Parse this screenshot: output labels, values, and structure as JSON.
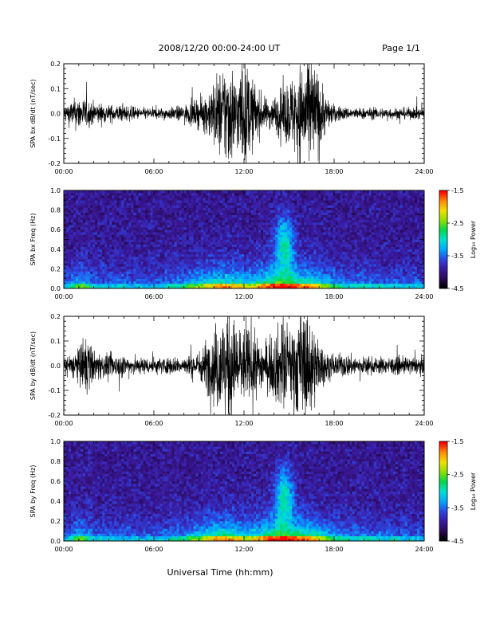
{
  "header": {
    "title": "2008/12/20  00:00-24:00 UT",
    "page": "Page 1/1"
  },
  "footer": {
    "xlabel": "Universal Time (hh:mm)"
  },
  "colors": {
    "trace": "#000000",
    "background": "#ffffff",
    "colormap": [
      "#000000",
      "#2a0a5a",
      "#3a1aa0",
      "#2b49e6",
      "#00a8ff",
      "#00e0d0",
      "#00d84a",
      "#8ee000",
      "#f0e000",
      "#ff8a00",
      "#ff0000"
    ]
  },
  "chart_data": [
    {
      "type": "line",
      "panel": "bx-timeseries",
      "ylabel": "SPA bx dB/dt (nT/sec)",
      "x_tick_labels": [
        "00:00",
        "06:00",
        "12:00",
        "18:00",
        "24:00"
      ],
      "xlim": [
        0,
        24
      ],
      "ylim": [
        -0.2,
        0.2
      ],
      "y_tick_labels": [
        "0.2",
        "0.1",
        "0.0",
        "-0.1",
        "-0.2"
      ],
      "y_ticks": [
        0.2,
        0.1,
        0.0,
        -0.1,
        -0.2
      ],
      "series": [
        {
          "x": [
            0,
            1,
            2,
            3,
            4,
            5,
            6,
            7,
            8,
            9,
            9.5,
            10,
            10.5,
            11,
            11.5,
            12,
            12.5,
            13,
            13.5,
            14,
            14.5,
            15,
            15.5,
            16,
            16.5,
            17,
            17.5,
            18,
            19,
            20,
            21,
            22,
            23,
            24
          ],
          "y": [
            0.03,
            0.06,
            0.04,
            0.03,
            0.03,
            0.02,
            0.02,
            0.02,
            0.03,
            0.05,
            0.07,
            0.12,
            0.16,
            0.2,
            0.13,
            0.2,
            0.13,
            0.08,
            0.05,
            0.06,
            0.09,
            0.12,
            0.15,
            0.2,
            0.2,
            0.14,
            0.06,
            0.03,
            0.02,
            0.02,
            0.02,
            0.02,
            0.02,
            0.02
          ]
        }
      ]
    },
    {
      "type": "heatmap",
      "panel": "bx-spectrogram",
      "ylabel": "SPA bx Freq (Hz)",
      "x_tick_labels": [
        "00:00",
        "06:00",
        "12:00",
        "18:00",
        "24:00"
      ],
      "xlim": [
        0,
        24
      ],
      "ylim": [
        0,
        1.0
      ],
      "y_tick_labels": [
        "1.0",
        "0.8",
        "0.6",
        "0.4",
        "0.2",
        "0.0"
      ],
      "y_ticks": [
        1.0,
        0.8,
        0.6,
        0.4,
        0.2,
        0.0
      ],
      "colorbar": {
        "label": "Log₁₀ Power",
        "range": [
          -4.5,
          -1.5
        ],
        "tick_labels": [
          "-1.5",
          "-2.5",
          "-3.5",
          "-4.5"
        ],
        "ticks": [
          -1.5,
          -2.5,
          -3.5,
          -4.5
        ]
      }
    },
    {
      "type": "line",
      "panel": "by-timeseries",
      "ylabel": "SPA by dB/dt (nT/sec)",
      "x_tick_labels": [
        "00:00",
        "06:00",
        "12:00",
        "18:00",
        "24:00"
      ],
      "xlim": [
        0,
        24
      ],
      "ylim": [
        -0.2,
        0.2
      ],
      "y_tick_labels": [
        "0.2",
        "0.1",
        "0.0",
        "-0.1",
        "-0.2"
      ],
      "y_ticks": [
        0.2,
        0.1,
        0.0,
        -0.1,
        -0.2
      ],
      "series": [
        {
          "x": [
            0,
            1,
            1.5,
            2,
            3,
            4,
            5,
            6,
            7,
            8,
            9,
            9.5,
            10,
            10.5,
            11,
            11.5,
            12,
            12.5,
            13,
            13.5,
            14,
            14.5,
            15,
            15.5,
            16,
            16.5,
            17,
            17.5,
            18,
            19,
            20,
            21,
            22,
            23,
            24
          ],
          "y": [
            0.03,
            0.06,
            0.12,
            0.05,
            0.04,
            0.04,
            0.03,
            0.03,
            0.03,
            0.03,
            0.05,
            0.09,
            0.14,
            0.18,
            0.2,
            0.15,
            0.14,
            0.12,
            0.1,
            0.08,
            0.12,
            0.16,
            0.14,
            0.18,
            0.2,
            0.17,
            0.09,
            0.05,
            0.04,
            0.04,
            0.03,
            0.03,
            0.03,
            0.03,
            0.03
          ]
        }
      ]
    },
    {
      "type": "heatmap",
      "panel": "by-spectrogram",
      "ylabel": "SPA by Freq (Hz)",
      "x_tick_labels": [
        "00:00",
        "06:00",
        "12:00",
        "18:00",
        "24:00"
      ],
      "xlim": [
        0,
        24
      ],
      "ylim": [
        0,
        1.0
      ],
      "y_tick_labels": [
        "1.0",
        "0.8",
        "0.6",
        "0.4",
        "0.2",
        "0.0"
      ],
      "y_ticks": [
        1.0,
        0.8,
        0.6,
        0.4,
        0.2,
        0.0
      ],
      "colorbar": {
        "label": "Log₁₀ Power",
        "range": [
          -4.5,
          -1.5
        ],
        "tick_labels": [
          "-1.5",
          "-2.5",
          "-3.5",
          "-4.5"
        ],
        "ticks": [
          -1.5,
          -2.5,
          -3.5,
          -4.5
        ]
      }
    }
  ]
}
